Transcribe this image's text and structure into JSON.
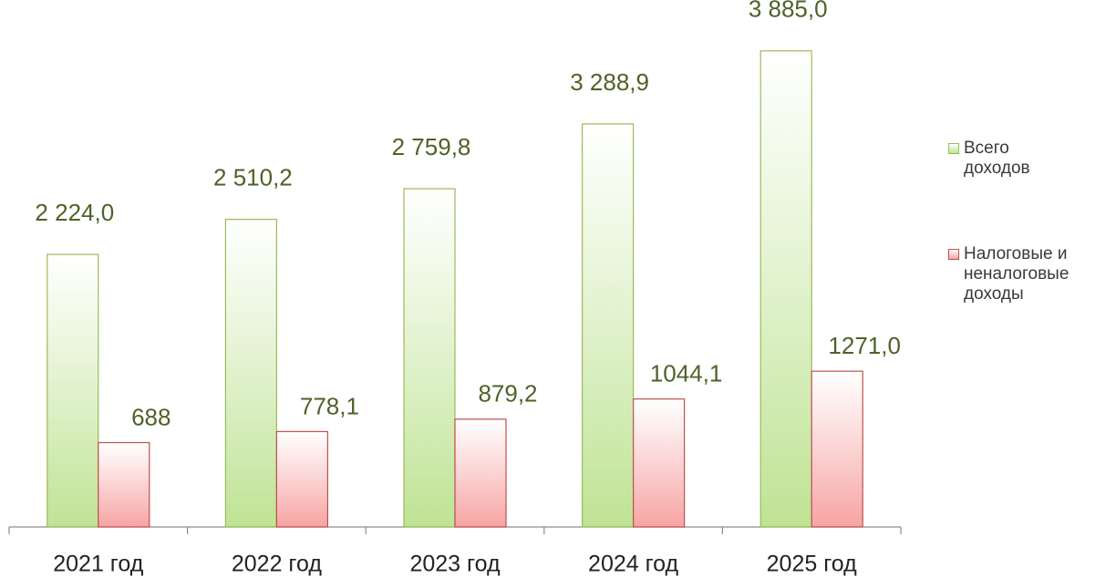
{
  "chart_data": {
    "type": "bar",
    "categories": [
      "2021 год",
      "2022 год",
      "2023 год",
      "2024 год",
      "2025 год"
    ],
    "series": [
      {
        "name": "Всего доходов",
        "color": "#bfe394",
        "border": "#9bbb59",
        "values": [
          2224.0,
          2510.2,
          2759.8,
          3288.9,
          3885.0
        ],
        "value_labels": [
          "2 224,0",
          "2 510,2",
          "2 759,8",
          "3 288,9",
          "3 885,0"
        ]
      },
      {
        "name": "Налоговые и неналоговые доходы",
        "color": "#f7a3a3",
        "border": "#c0504d",
        "values": [
          688,
          778.1,
          879.2,
          1044.1,
          1271.0
        ],
        "value_labels": [
          "688",
          "778,1",
          "879,2",
          "1044,1",
          "1271,0"
        ]
      }
    ],
    "ylim": [
      0,
      4300
    ],
    "grid": false,
    "legend": "right"
  }
}
